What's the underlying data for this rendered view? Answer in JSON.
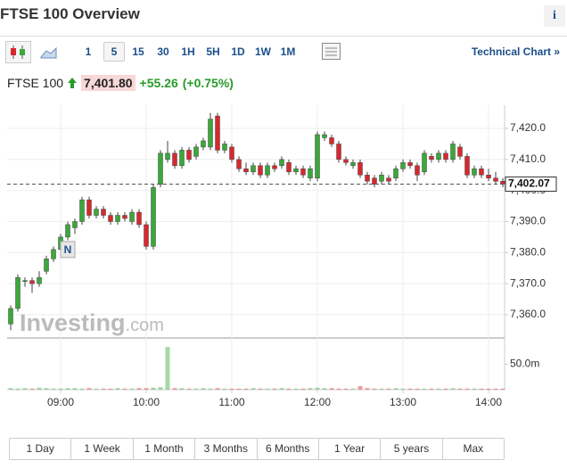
{
  "header": {
    "title": "FTSE 100 Overview",
    "info": "i"
  },
  "toolbar": {
    "intervals": [
      "1",
      "5",
      "15",
      "30",
      "1H",
      "5H",
      "1D",
      "1W",
      "1M"
    ],
    "technical_chart": "Technical Chart »"
  },
  "quote": {
    "name": "FTSE 100",
    "price": "7,401.80",
    "change": "+55.26",
    "change_pct": "(+0.75%)"
  },
  "chart_data": {
    "type": "candlestick",
    "watermark": [
      "Investing",
      ".com"
    ],
    "up_color": "#3aa83a",
    "down_color": "#d8282f",
    "x": [
      505,
      510,
      515,
      520,
      525,
      530,
      535,
      540,
      545,
      550,
      555,
      560,
      565,
      570,
      575,
      580,
      585,
      590,
      595,
      600,
      605,
      610,
      615,
      620,
      625,
      630,
      635,
      640,
      645,
      650,
      655,
      660,
      665,
      670,
      675,
      680,
      685,
      690,
      695,
      700,
      705,
      710,
      715,
      720,
      725,
      730,
      735,
      740,
      745,
      750,
      755,
      760,
      765,
      770,
      775,
      780,
      785,
      790,
      795,
      800,
      805,
      810,
      815,
      820,
      825,
      830,
      835,
      840,
      845,
      850
    ],
    "open": [
      7357,
      7362,
      7371,
      7371,
      7370,
      7374,
      7378,
      7381,
      7385,
      7388,
      7390,
      7397,
      7392,
      7394,
      7392,
      7390,
      7392,
      7390,
      7393,
      7389,
      7382,
      7402,
      7410,
      7412,
      7408,
      7413,
      7411,
      7414,
      7414,
      7424,
      7413,
      7414,
      7410,
      7407,
      7406,
      7408,
      7405,
      7408,
      7408,
      7409,
      7406,
      7407,
      7404,
      7404,
      7417,
      7417,
      7415,
      7410,
      7408,
      7409,
      7405,
      7404,
      7403,
      7404,
      7404,
      7407,
      7409,
      7408,
      7406,
      7411,
      7410,
      7412,
      7410,
      7414,
      7411,
      7405,
      7407,
      7405,
      7404,
      7403
    ],
    "high": [
      7363,
      7373,
      7372,
      7372,
      7374,
      7379,
      7382,
      7386,
      7390,
      7391,
      7398,
      7398,
      7395,
      7395,
      7393,
      7393,
      7393,
      7394,
      7394,
      7390,
      7402,
      7413,
      7416,
      7413,
      7414,
      7414,
      7415,
      7417,
      7425,
      7425,
      7416,
      7415,
      7411,
      7409,
      7409,
      7409,
      7409,
      7409,
      7411,
      7410,
      7408,
      7408,
      7408,
      7419,
      7419,
      7418,
      7416,
      7411,
      7410,
      7410,
      7406,
      7405,
      7406,
      7405,
      7408,
      7410,
      7410,
      7409,
      7413,
      7412,
      7413,
      7413,
      7416,
      7415,
      7412,
      7408,
      7408,
      7407,
      7406,
      7404
    ],
    "low": [
      7355,
      7361,
      7369,
      7367,
      7369,
      7373,
      7377,
      7380,
      7384,
      7386,
      7389,
      7391,
      7391,
      7391,
      7389,
      7389,
      7390,
      7389,
      7388,
      7381,
      7381,
      7401,
      7409,
      7407,
      7407,
      7409,
      7410,
      7413,
      7413,
      7412,
      7412,
      7409,
      7406,
      7405,
      7405,
      7404,
      7404,
      7406,
      7407,
      7405,
      7405,
      7404,
      7403,
      7403,
      7416,
      7414,
      7409,
      7408,
      7407,
      7404,
      7402,
      7401,
      7402,
      7402,
      7403,
      7406,
      7407,
      7403,
      7405,
      7409,
      7409,
      7409,
      7409,
      7410,
      7404,
      7404,
      7404,
      7403,
      7402,
      7401
    ],
    "close": [
      7362,
      7372,
      7371,
      7370,
      7372,
      7378,
      7381,
      7385,
      7389,
      7390,
      7397,
      7392,
      7394,
      7392,
      7390,
      7392,
      7391,
      7393,
      7389,
      7382,
      7401,
      7412,
      7412,
      7408,
      7413,
      7410,
      7414,
      7416,
      7423,
      7413,
      7415,
      7410,
      7407,
      7406,
      7408,
      7405,
      7408,
      7407,
      7410,
      7406,
      7407,
      7405,
      7407,
      7418,
      7418,
      7415,
      7410,
      7409,
      7409,
      7405,
      7403,
      7402,
      7405,
      7403,
      7407,
      7409,
      7408,
      7405,
      7412,
      7410,
      7412,
      7410,
      7415,
      7411,
      7405,
      7407,
      7405,
      7404,
      7403,
      7402.07
    ],
    "volume": [
      3,
      2,
      3,
      2,
      4,
      3,
      2,
      2,
      3,
      3,
      2,
      3,
      2,
      2,
      2,
      3,
      2,
      2,
      3,
      3,
      4,
      5,
      84,
      3,
      3,
      2,
      2,
      3,
      2,
      3,
      2,
      2,
      2,
      2,
      3,
      2,
      2,
      2,
      3,
      2,
      2,
      2,
      3,
      4,
      3,
      3,
      2,
      2,
      2,
      7,
      3,
      2,
      2,
      2,
      3,
      2,
      2,
      2,
      2,
      2,
      2,
      2,
      3,
      2,
      2,
      2,
      2,
      2,
      2,
      2
    ],
    "xlim": [
      502.5,
      851.25
    ],
    "xticks": [
      {
        "value": 540,
        "label": "09:00"
      },
      {
        "value": 600,
        "label": "10:00"
      },
      {
        "value": 660,
        "label": "11:00"
      },
      {
        "value": 720,
        "label": "12:00"
      },
      {
        "value": 780,
        "label": "13:00"
      },
      {
        "value": 840,
        "label": "14:00"
      }
    ],
    "ylim": [
      7352.8,
      7426.9
    ],
    "yticks": [
      {
        "value": 7360,
        "label": "7,360.0"
      },
      {
        "value": 7370,
        "label": "7,370.0"
      },
      {
        "value": 7380,
        "label": "7,380.0"
      },
      {
        "value": 7390,
        "label": "7,390.0"
      },
      {
        "value": 7400,
        "label": "7,400.0"
      },
      {
        "value": 7410,
        "label": "7,410.0"
      },
      {
        "value": 7420,
        "label": "7,420.0"
      }
    ],
    "volume_ylim": [
      0,
      100
    ],
    "volume_yticks": [
      {
        "value": 50,
        "label": "50.0m"
      }
    ],
    "last_price": {
      "value": 7402.07,
      "label": "7,402.07"
    },
    "annotation": {
      "label": "N",
      "x": 545,
      "y": 7381
    },
    "grid": true
  },
  "ranges": [
    "1 Day",
    "1 Week",
    "1 Month",
    "3 Months",
    "6 Months",
    "1 Year",
    "5 years",
    "Max"
  ]
}
